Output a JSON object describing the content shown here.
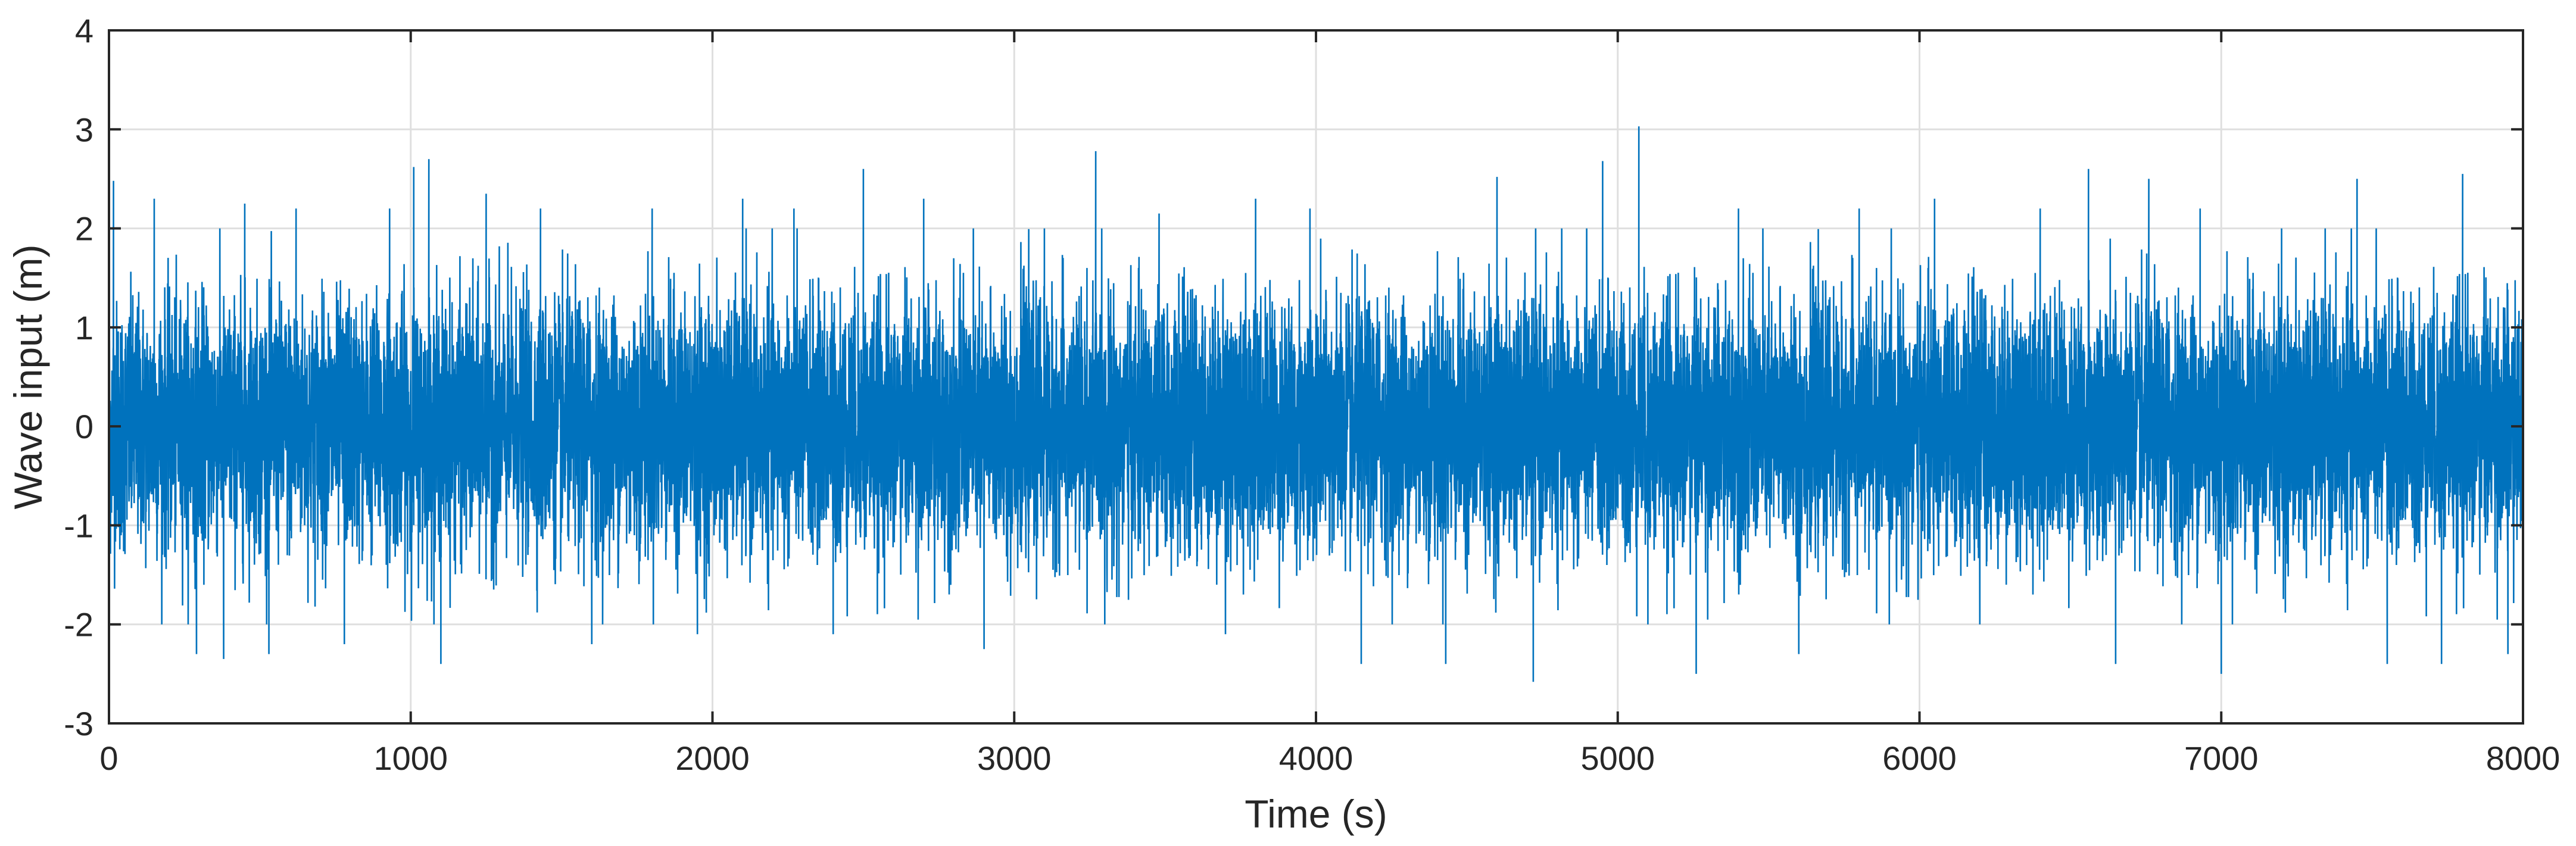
{
  "chart_data": {
    "type": "line",
    "title": "",
    "xlabel": "Time (s)",
    "ylabel": "Wave input (m)",
    "xlim": [
      0,
      8000
    ],
    "ylim": [
      -3,
      4
    ],
    "xticks": [
      0,
      1000,
      2000,
      3000,
      4000,
      5000,
      6000,
      7000,
      8000
    ],
    "yticks": [
      -3,
      -2,
      -1,
      0,
      1,
      2,
      3,
      4
    ],
    "xtick_labels": [
      "0",
      "1000",
      "2000",
      "3000",
      "4000",
      "5000",
      "6000",
      "7000",
      "8000"
    ],
    "ytick_labels": [
      "-3",
      "-2",
      "-1",
      "0",
      "1",
      "2",
      "3",
      "4"
    ],
    "grid": true,
    "series": [
      {
        "color": "#0072BD",
        "x_range": [
          0,
          8000
        ],
        "points": [
          [
            0,
            0.3
          ],
          [
            15,
            2.48
          ],
          [
            40,
            -1.1
          ],
          [
            150,
            2.3
          ],
          [
            290,
            -2.3
          ],
          [
            380,
            -2.35
          ],
          [
            450,
            2.25
          ],
          [
            530,
            -2.3
          ],
          [
            620,
            2.2
          ],
          [
            780,
            -2.2
          ],
          [
            930,
            2.2
          ],
          [
            1010,
            2.62
          ],
          [
            1060,
            2.7
          ],
          [
            1100,
            -2.4
          ],
          [
            1250,
            2.35
          ],
          [
            1430,
            2.2
          ],
          [
            1600,
            -2.2
          ],
          [
            1800,
            2.2
          ],
          [
            1950,
            -2.1
          ],
          [
            2100,
            2.3
          ],
          [
            2270,
            2.2
          ],
          [
            2400,
            -2.1
          ],
          [
            2500,
            2.6
          ],
          [
            2700,
            2.3
          ],
          [
            2900,
            -2.25
          ],
          [
            3100,
            2.0
          ],
          [
            3270,
            2.78
          ],
          [
            3300,
            -2.0
          ],
          [
            3480,
            2.15
          ],
          [
            3700,
            -2.1
          ],
          [
            3800,
            2.3
          ],
          [
            3980,
            2.2
          ],
          [
            4150,
            -2.4
          ],
          [
            4430,
            -2.4
          ],
          [
            4600,
            2.52
          ],
          [
            4720,
            -2.58
          ],
          [
            4950,
            2.68
          ],
          [
            5070,
            3.03
          ],
          [
            5100,
            -2.0
          ],
          [
            5260,
            -2.5
          ],
          [
            5400,
            2.2
          ],
          [
            5600,
            -2.3
          ],
          [
            5800,
            2.2
          ],
          [
            5900,
            -2.0
          ],
          [
            6050,
            2.3
          ],
          [
            6200,
            -2.0
          ],
          [
            6400,
            2.2
          ],
          [
            6560,
            2.6
          ],
          [
            6650,
            -2.4
          ],
          [
            6760,
            2.5
          ],
          [
            6930,
            2.2
          ],
          [
            7000,
            -2.5
          ],
          [
            7200,
            2.0
          ],
          [
            7450,
            2.5
          ],
          [
            7550,
            -2.4
          ],
          [
            7730,
            -2.4
          ],
          [
            7800,
            2.55
          ],
          [
            7950,
            -2.3
          ],
          [
            8000,
            0.1
          ]
        ],
        "typical_band": [
          -1.0,
          1.0
        ]
      }
    ]
  },
  "style": {
    "line_color": "#0072BD",
    "grid_color": "#dfdfdf",
    "axis_color": "#262626"
  }
}
